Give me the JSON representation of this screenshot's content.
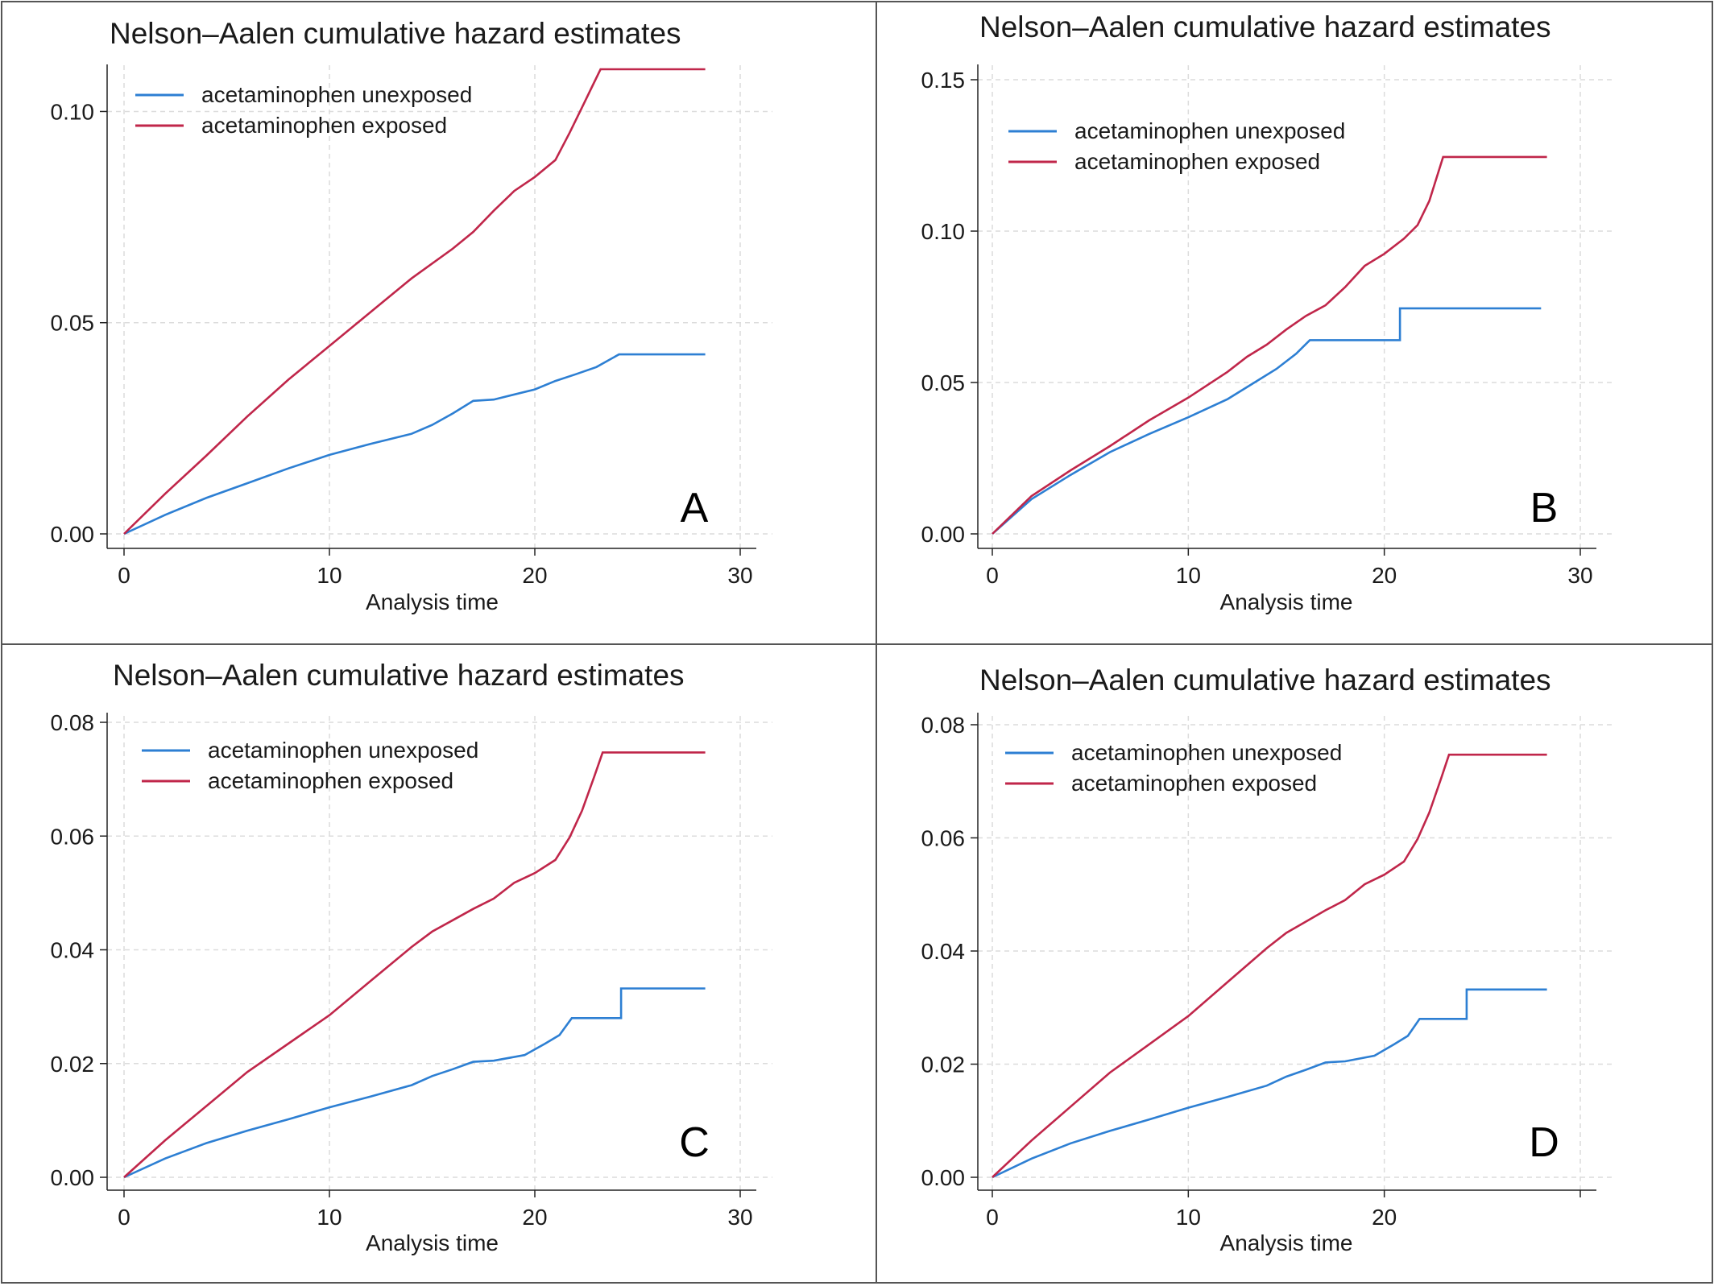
{
  "colors": {
    "unexposed": "#2d7fd3",
    "exposed": "#c0264a",
    "grid": "#dcdcdc",
    "axis": "#222222"
  },
  "chart_data": [
    {
      "type": "line",
      "panel": "A",
      "title": "Nelson–Aalen cumulative hazard estimates",
      "xlabel": "Analysis time",
      "ylabel": "",
      "xlim": [
        0,
        30
      ],
      "ylim": [
        0,
        0.11
      ],
      "xticks": [
        0,
        10,
        20,
        30
      ],
      "xtick_labels": [
        "0",
        "10",
        "20",
        "30"
      ],
      "yticks": [
        0,
        0.05,
        0.1
      ],
      "ytick_labels": [
        "0.00",
        "0.05",
        "0.10"
      ],
      "grid": true,
      "legend_position": "top-left",
      "series": [
        {
          "name": "acetaminophen unexposed",
          "x": [
            0,
            2,
            4,
            6,
            8,
            10,
            12,
            14,
            15,
            16,
            17,
            18,
            20,
            21,
            22,
            23,
            24.1,
            28.3
          ],
          "y": [
            0,
            0.0045,
            0.0085,
            0.012,
            0.0155,
            0.0187,
            0.0213,
            0.0237,
            0.0258,
            0.0285,
            0.0315,
            0.0318,
            0.0342,
            0.0362,
            0.0378,
            0.0395,
            0.0425,
            0.0425
          ]
        },
        {
          "name": "acetaminophen exposed",
          "x": [
            0,
            2,
            4,
            6,
            8,
            10,
            12,
            14,
            16,
            17,
            18,
            19,
            20,
            21,
            21.7,
            22.3,
            22.8,
            23.2,
            28.3
          ],
          "y": [
            0,
            0.0095,
            0.0185,
            0.0278,
            0.0365,
            0.0445,
            0.0525,
            0.0605,
            0.0675,
            0.0715,
            0.0765,
            0.0812,
            0.0845,
            0.0885,
            0.095,
            0.101,
            0.106,
            0.11,
            0.11
          ]
        }
      ]
    },
    {
      "type": "line",
      "panel": "B",
      "title": "Nelson–Aalen cumulative hazard estimates",
      "xlabel": "Analysis time",
      "ylabel": "",
      "xlim": [
        0,
        30
      ],
      "ylim": [
        0,
        0.15
      ],
      "xticks": [
        0,
        10,
        20,
        30
      ],
      "xtick_labels": [
        "0",
        "10",
        "20",
        "30"
      ],
      "yticks": [
        0,
        0.05,
        0.1,
        0.15
      ],
      "ytick_labels": [
        "0.00",
        "0.05",
        "0.10",
        "0.15"
      ],
      "grid": true,
      "legend_position": "top-left",
      "series": [
        {
          "name": "acetaminophen unexposed",
          "x": [
            0,
            2,
            4,
            6,
            8,
            10,
            12,
            13.5,
            14.5,
            15.5,
            16.2,
            20.8,
            20.8,
            28
          ],
          "y": [
            0,
            0.0115,
            0.0195,
            0.027,
            0.033,
            0.0385,
            0.0445,
            0.0505,
            0.0545,
            0.0595,
            0.064,
            0.064,
            0.0745,
            0.0745
          ]
        },
        {
          "name": "acetaminophen exposed",
          "x": [
            0,
            2,
            4,
            6,
            8,
            10,
            12,
            13,
            14,
            15,
            16,
            17,
            18,
            19,
            20,
            21,
            21.7,
            22.3,
            23,
            28.3
          ],
          "y": [
            0,
            0.0125,
            0.021,
            0.029,
            0.0375,
            0.045,
            0.0535,
            0.0585,
            0.0625,
            0.0675,
            0.072,
            0.0755,
            0.0815,
            0.0885,
            0.0925,
            0.0975,
            0.102,
            0.11,
            0.1245,
            0.1245
          ]
        }
      ]
    },
    {
      "type": "line",
      "panel": "C",
      "title": "Nelson–Aalen cumulative hazard estimates",
      "xlabel": "Analysis time",
      "ylabel": "",
      "xlim": [
        0,
        30
      ],
      "ylim": [
        0,
        0.08
      ],
      "xticks": [
        0,
        10,
        20,
        30
      ],
      "xtick_labels": [
        "0",
        "10",
        "20",
        "30"
      ],
      "yticks": [
        0,
        0.02,
        0.04,
        0.06,
        0.08
      ],
      "ytick_labels": [
        "0.00",
        "0.02",
        "0.04",
        "0.06",
        "0.08"
      ],
      "grid": true,
      "legend_position": "top-left",
      "series": [
        {
          "name": "acetaminophen unexposed",
          "x": [
            0,
            2,
            4,
            6,
            8,
            10,
            12,
            14,
            15,
            16,
            17,
            18,
            19.5,
            20.5,
            21.2,
            21.8,
            24.2,
            24.2,
            28.3
          ],
          "y": [
            0,
            0.0033,
            0.006,
            0.0082,
            0.0102,
            0.0123,
            0.0142,
            0.0162,
            0.0178,
            0.019,
            0.0203,
            0.0205,
            0.0215,
            0.0235,
            0.025,
            0.028,
            0.028,
            0.0332,
            0.0332
          ]
        },
        {
          "name": "acetaminophen exposed",
          "x": [
            0,
            2,
            4,
            6,
            8,
            10,
            12,
            14,
            15,
            16,
            17,
            18,
            19,
            20,
            21,
            21.7,
            22.3,
            22.9,
            23.3,
            28.3
          ],
          "y": [
            0,
            0.0065,
            0.0125,
            0.0185,
            0.0235,
            0.0285,
            0.0345,
            0.0405,
            0.0432,
            0.0452,
            0.0472,
            0.049,
            0.0518,
            0.0535,
            0.0558,
            0.0598,
            0.0645,
            0.0705,
            0.0747,
            0.0747
          ]
        }
      ]
    },
    {
      "type": "line",
      "panel": "D",
      "title": "Nelson–Aalen cumulative hazard estimates",
      "xlabel": "Analysis time",
      "ylabel": "",
      "xlim": [
        0,
        30
      ],
      "ylim": [
        0,
        0.08
      ],
      "xticks": [
        0,
        10,
        20,
        30
      ],
      "xtick_labels": [
        "0",
        "10",
        "20",
        ""
      ],
      "yticks": [
        0,
        0.02,
        0.04,
        0.06,
        0.08
      ],
      "ytick_labels": [
        "0.00",
        "0.02",
        "0.04",
        "0.06",
        "0.08"
      ],
      "grid": true,
      "legend_position": "top-left",
      "series": [
        {
          "name": "acetaminophen unexposed",
          "x": [
            0,
            2,
            4,
            6,
            8,
            10,
            12,
            14,
            15,
            16,
            17,
            18,
            19.5,
            20.5,
            21.2,
            21.8,
            24.2,
            24.2,
            28.3
          ],
          "y": [
            0,
            0.0033,
            0.006,
            0.0082,
            0.0102,
            0.0123,
            0.0142,
            0.0162,
            0.0178,
            0.019,
            0.0203,
            0.0205,
            0.0215,
            0.0235,
            0.025,
            0.028,
            0.028,
            0.0332,
            0.0332
          ]
        },
        {
          "name": "acetaminophen exposed",
          "x": [
            0,
            2,
            4,
            6,
            8,
            10,
            12,
            14,
            15,
            16,
            17,
            18,
            19,
            20,
            21,
            21.7,
            22.3,
            22.9,
            23.3,
            28.3
          ],
          "y": [
            0,
            0.0065,
            0.0125,
            0.0185,
            0.0235,
            0.0285,
            0.0345,
            0.0405,
            0.0432,
            0.0452,
            0.0472,
            0.049,
            0.0518,
            0.0535,
            0.0558,
            0.0598,
            0.0645,
            0.0705,
            0.0747,
            0.0747
          ]
        }
      ]
    }
  ]
}
